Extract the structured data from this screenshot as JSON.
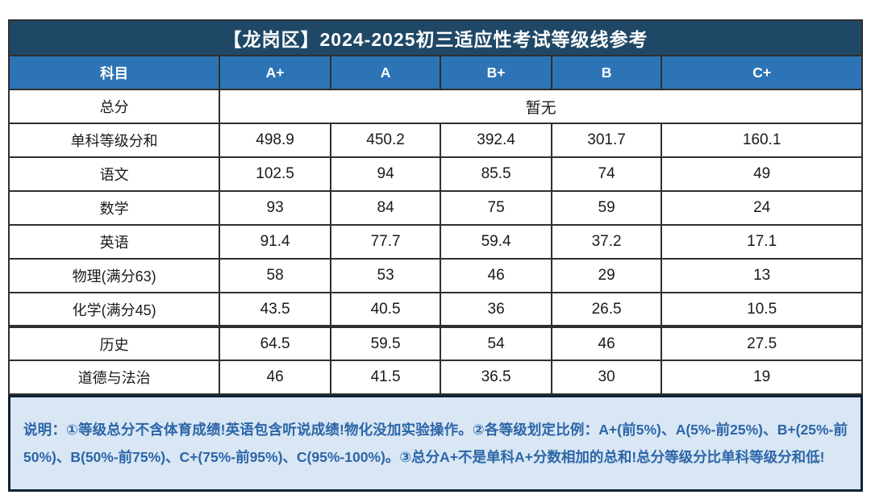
{
  "chart_data": {
    "type": "table",
    "title": "【龙岗区】2024-2025初三适应性考试等级线参考",
    "columns": [
      "科目",
      "A+",
      "A",
      "B+",
      "B",
      "C+"
    ],
    "rows": [
      {
        "subject": "总分",
        "merged": true,
        "merged_value": "暂无"
      },
      {
        "subject": "单科等级分和",
        "values": [
          498.9,
          450.2,
          392.4,
          301.7,
          160.1
        ]
      },
      {
        "subject": "语文",
        "values": [
          102.5,
          94,
          85.5,
          74,
          49
        ]
      },
      {
        "subject": "数学",
        "values": [
          93,
          84,
          75,
          59,
          24
        ]
      },
      {
        "subject": "英语",
        "values": [
          91.4,
          77.7,
          59.4,
          37.2,
          17.1
        ]
      },
      {
        "subject": "物理(满分63)",
        "values": [
          58,
          53,
          46,
          29,
          13
        ]
      },
      {
        "subject": "化学(满分45)",
        "values": [
          43.5,
          40.5,
          36,
          26.5,
          10.5
        ]
      },
      {
        "subject": "历史",
        "values": [
          64.5,
          59.5,
          54,
          46,
          27.5
        ]
      },
      {
        "subject": "道德与法治",
        "values": [
          46,
          41.5,
          36.5,
          30,
          19
        ]
      }
    ],
    "note": "说明：①等级总分不含体育成绩!英语包含听说成绩!物化没加实验操作。②各等级划定比例：A+(前5%)、A(5%-前25%)、B+(25%-前50%)、B(50%-前75%)、C+(75%-前95%)、C(95%-100%)。③总分A+不是单科A+分数相加的总和!总分等级分比单科等级分和低!",
    "layout_colors": {
      "title_bg": "#1f4866",
      "header_bg": "#2d74b6",
      "note_bg": "#d9e6f3",
      "note_text": "#2b66a8",
      "note_border": "#0f2237",
      "grid_border": "#2f2f2f"
    }
  }
}
